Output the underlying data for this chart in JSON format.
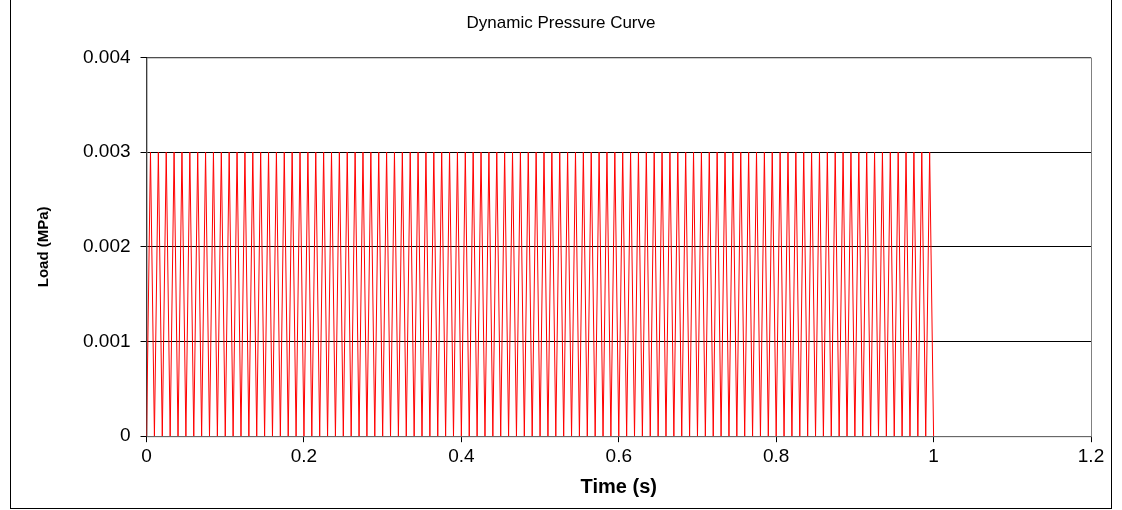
{
  "chart_data": {
    "type": "line",
    "title": "Dynamic Pressure Curve",
    "xlabel": "Time (s)",
    "ylabel": "Load (MPa)",
    "xlim": [
      0,
      1.2
    ],
    "xticks": [
      0,
      0.2,
      0.4,
      0.6,
      0.8,
      1,
      1.2
    ],
    "ylim": [
      0,
      0.004
    ],
    "yticks": [
      0,
      0.001,
      0.002,
      0.003,
      0.004
    ],
    "grid": "y",
    "legend": false,
    "marker": "none",
    "line_style": "solid",
    "series": [
      {
        "color": "#ff0000",
        "x": [
          0,
          0.005,
          0.01,
          0.015,
          0.02,
          0.025,
          0.03,
          0.035,
          0.04,
          0.045,
          0.05,
          0.055,
          0.06,
          0.065,
          0.07,
          0.075,
          0.08,
          0.085,
          0.09,
          0.095,
          0.1,
          0.105,
          0.11,
          0.115,
          0.12,
          0.125,
          0.13,
          0.135,
          0.14,
          0.145,
          0.15,
          0.155,
          0.16,
          0.165,
          0.17,
          0.175,
          0.18,
          0.185,
          0.19,
          0.195,
          0.2,
          0.205,
          0.21,
          0.215,
          0.22,
          0.225,
          0.23,
          0.235,
          0.24,
          0.245,
          0.25,
          0.255,
          0.26,
          0.265,
          0.27,
          0.275,
          0.28,
          0.285,
          0.29,
          0.295,
          0.3,
          0.305,
          0.31,
          0.315,
          0.32,
          0.325,
          0.33,
          0.335,
          0.34,
          0.345,
          0.35,
          0.355,
          0.36,
          0.365,
          0.37,
          0.375,
          0.38,
          0.385,
          0.39,
          0.395,
          0.4,
          0.405,
          0.41,
          0.415,
          0.42,
          0.425,
          0.43,
          0.435,
          0.44,
          0.445,
          0.45,
          0.455,
          0.46,
          0.465,
          0.47,
          0.475,
          0.48,
          0.485,
          0.49,
          0.495,
          0.5,
          0.505,
          0.51,
          0.515,
          0.52,
          0.525,
          0.53,
          0.535,
          0.54,
          0.545,
          0.55,
          0.555,
          0.56,
          0.565,
          0.57,
          0.575,
          0.58,
          0.585,
          0.59,
          0.595,
          0.6,
          0.605,
          0.61,
          0.615,
          0.62,
          0.625,
          0.63,
          0.635,
          0.64,
          0.645,
          0.65,
          0.655,
          0.66,
          0.665,
          0.67,
          0.675,
          0.68,
          0.685,
          0.69,
          0.695,
          0.7,
          0.705,
          0.71,
          0.715,
          0.72,
          0.725,
          0.73,
          0.735,
          0.74,
          0.745,
          0.75,
          0.755,
          0.76,
          0.765,
          0.77,
          0.775,
          0.78,
          0.785,
          0.79,
          0.795,
          0.8,
          0.805,
          0.81,
          0.815,
          0.82,
          0.825,
          0.83,
          0.835,
          0.84,
          0.845,
          0.85,
          0.855,
          0.86,
          0.865,
          0.87,
          0.875,
          0.88,
          0.885,
          0.89,
          0.895,
          0.9,
          0.905,
          0.91,
          0.915,
          0.92,
          0.925,
          0.93,
          0.935,
          0.94,
          0.945,
          0.95,
          0.955,
          0.96,
          0.965,
          0.97,
          0.975,
          0.98,
          0.985,
          0.99,
          0.995,
          1
        ],
        "values": [
          0,
          0.003,
          0,
          0.003,
          0,
          0.003,
          0,
          0.003,
          0,
          0.003,
          0,
          0.003,
          0,
          0.003,
          0,
          0.003,
          0,
          0.003,
          0,
          0.003,
          0,
          0.003,
          0,
          0.003,
          0,
          0.003,
          0,
          0.003,
          0,
          0.003,
          0,
          0.003,
          0,
          0.003,
          0,
          0.003,
          0,
          0.003,
          0,
          0.003,
          0,
          0.003,
          0,
          0.003,
          0,
          0.003,
          0,
          0.003,
          0,
          0.003,
          0,
          0.003,
          0,
          0.003,
          0,
          0.003,
          0,
          0.003,
          0,
          0.003,
          0,
          0.003,
          0,
          0.003,
          0,
          0.003,
          0,
          0.003,
          0,
          0.003,
          0,
          0.003,
          0,
          0.003,
          0,
          0.003,
          0,
          0.003,
          0,
          0.003,
          0,
          0.003,
          0,
          0.003,
          0,
          0.003,
          0,
          0.003,
          0,
          0.003,
          0,
          0.003,
          0,
          0.003,
          0,
          0.003,
          0,
          0.003,
          0,
          0.003,
          0,
          0.003,
          0,
          0.003,
          0,
          0.003,
          0,
          0.003,
          0,
          0.003,
          0,
          0.003,
          0,
          0.003,
          0,
          0.003,
          0,
          0.003,
          0,
          0.003,
          0,
          0.003,
          0,
          0.003,
          0,
          0.003,
          0,
          0.003,
          0,
          0.003,
          0,
          0.003,
          0,
          0.003,
          0,
          0.003,
          0,
          0.003,
          0,
          0.003,
          0,
          0.003,
          0,
          0.003,
          0,
          0.003,
          0,
          0.003,
          0,
          0.003,
          0,
          0.003,
          0,
          0.003,
          0,
          0.003,
          0,
          0.003,
          0,
          0.003,
          0,
          0.003,
          0,
          0.003,
          0,
          0.003,
          0,
          0.003,
          0,
          0.003,
          0,
          0.003,
          0,
          0.003,
          0,
          0.003,
          0,
          0.003,
          0,
          0.003,
          0,
          0.003,
          0,
          0.003,
          0,
          0.003,
          0,
          0.003,
          0,
          0.003,
          0,
          0.003,
          0,
          0.003,
          0,
          0.003,
          0,
          0.003,
          0,
          0.003,
          0
        ]
      }
    ]
  }
}
